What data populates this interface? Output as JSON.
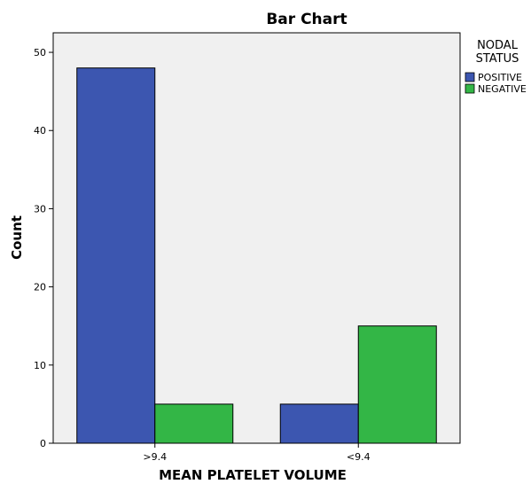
{
  "chart_data": {
    "type": "bar",
    "title": "Bar Chart",
    "xlabel": "MEAN PLATELET VOLUME",
    "ylabel": "Count",
    "categories": [
      ">9.4",
      "<9.4"
    ],
    "series": [
      {
        "name": "POSITIVE",
        "values": [
          48,
          5
        ],
        "color": "#3c56b0"
      },
      {
        "name": "NEGATIVE",
        "values": [
          5,
          15
        ],
        "color": "#33b646"
      }
    ],
    "ylim": [
      0,
      52.5
    ],
    "yticks": [
      0,
      10,
      20,
      30,
      40,
      50
    ],
    "grid": false,
    "legend": {
      "title_lines": [
        "NODAL",
        "STATUS"
      ],
      "placement": "top-right-outside"
    },
    "plot_background": "#f0f0f0"
  }
}
